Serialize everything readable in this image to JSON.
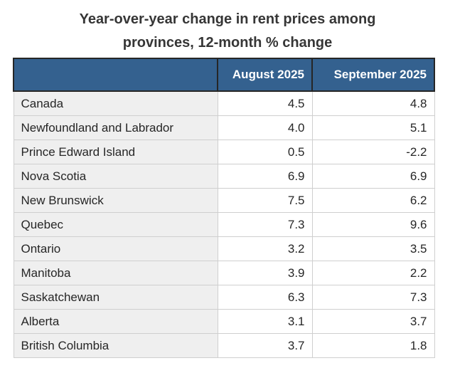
{
  "title": {
    "line1": "Year-over-year change in rent prices among",
    "line2": "provinces, 12-month % change"
  },
  "table": {
    "headers": [
      "",
      "August 2025",
      "September 2025"
    ],
    "rows": [
      {
        "region": "Canada",
        "aug": "4.5",
        "sep": "4.8"
      },
      {
        "region": "Newfoundland and Labrador",
        "aug": "4.0",
        "sep": "5.1"
      },
      {
        "region": "Prince Edward Island",
        "aug": "0.5",
        "sep": "-2.2"
      },
      {
        "region": "Nova Scotia",
        "aug": "6.9",
        "sep": "6.9"
      },
      {
        "region": "New Brunswick",
        "aug": "7.5",
        "sep": "6.2"
      },
      {
        "region": "Quebec",
        "aug": "7.3",
        "sep": "9.6"
      },
      {
        "region": "Ontario",
        "aug": "3.2",
        "sep": "3.5"
      },
      {
        "region": "Manitoba",
        "aug": "3.9",
        "sep": "2.2"
      },
      {
        "region": "Saskatchewan",
        "aug": "6.3",
        "sep": "7.3"
      },
      {
        "region": "Alberta",
        "aug": "3.1",
        "sep": "3.7"
      },
      {
        "region": "British Columbia",
        "aug": "3.7",
        "sep": "1.8"
      }
    ]
  },
  "chart_data": {
    "type": "table",
    "title": "Year-over-year change in rent prices among provinces, 12-month % change",
    "unit": "12-month % change",
    "categories": [
      "Canada",
      "Newfoundland and Labrador",
      "Prince Edward Island",
      "Nova Scotia",
      "New Brunswick",
      "Quebec",
      "Ontario",
      "Manitoba",
      "Saskatchewan",
      "Alberta",
      "British Columbia"
    ],
    "series": [
      {
        "name": "August 2025",
        "values": [
          4.5,
          4.0,
          0.5,
          6.9,
          7.5,
          7.3,
          3.2,
          3.9,
          6.3,
          3.1,
          3.7
        ]
      },
      {
        "name": "September 2025",
        "values": [
          4.8,
          5.1,
          -2.2,
          6.9,
          6.2,
          9.6,
          3.5,
          2.2,
          7.3,
          3.7,
          1.8
        ]
      }
    ]
  },
  "colors": {
    "header_bg": "#34618f",
    "header_text": "#ffffff",
    "header_border": "#262626",
    "row_label_bg": "#efefef",
    "row_value_bg": "#ffffff",
    "body_border": "#cfcfcf",
    "title_text": "#363636",
    "body_text": "#262626"
  }
}
